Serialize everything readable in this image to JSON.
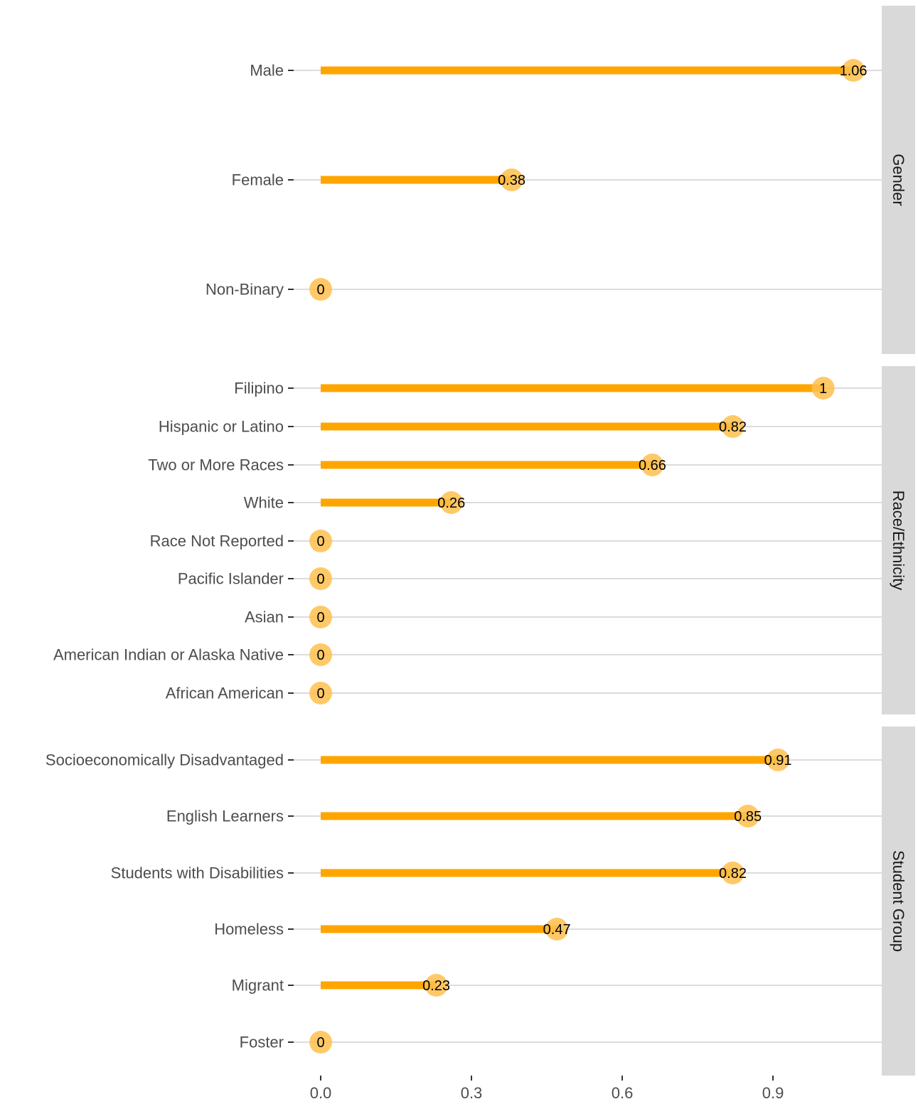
{
  "chart_data": {
    "type": "lollipop",
    "orientation": "horizontal",
    "xlim": [
      0,
      1.1
    ],
    "x_ticks": [
      {
        "value": 0.0,
        "label": "0.0"
      },
      {
        "value": 0.3,
        "label": "0.3"
      },
      {
        "value": 0.6,
        "label": "0.6"
      },
      {
        "value": 0.9,
        "label": "0.9"
      }
    ],
    "title": "",
    "xlabel": "",
    "ylabel": "",
    "grid": true,
    "colors": {
      "stem": "#ffa500",
      "point": "#ffc04d",
      "strip_bg": "#d9d9d9",
      "grid": "#dcdcdc"
    },
    "panels": [
      {
        "name": "Gender",
        "items": [
          {
            "label": "Male",
            "value": 1.06,
            "value_label": "1.06"
          },
          {
            "label": "Female",
            "value": 0.38,
            "value_label": "0.38"
          },
          {
            "label": "Non-Binary",
            "value": 0,
            "value_label": "0"
          }
        ]
      },
      {
        "name": "Race/Ethnicity",
        "items": [
          {
            "label": "Filipino",
            "value": 1,
            "value_label": "1"
          },
          {
            "label": "Hispanic or Latino",
            "value": 0.82,
            "value_label": "0.82"
          },
          {
            "label": "Two or More Races",
            "value": 0.66,
            "value_label": "0.66"
          },
          {
            "label": "White",
            "value": 0.26,
            "value_label": "0.26"
          },
          {
            "label": "Race Not Reported",
            "value": 0,
            "value_label": "0"
          },
          {
            "label": "Pacific Islander",
            "value": 0,
            "value_label": "0"
          },
          {
            "label": "Asian",
            "value": 0,
            "value_label": "0"
          },
          {
            "label": "American Indian or Alaska Native",
            "value": 0,
            "value_label": "0"
          },
          {
            "label": "African American",
            "value": 0,
            "value_label": "0"
          }
        ]
      },
      {
        "name": "Student Group",
        "items": [
          {
            "label": "Socioeconomically Disadvantaged",
            "value": 0.91,
            "value_label": "0.91"
          },
          {
            "label": "English Learners",
            "value": 0.85,
            "value_label": "0.85"
          },
          {
            "label": "Students with Disabilities",
            "value": 0.82,
            "value_label": "0.82"
          },
          {
            "label": "Homeless",
            "value": 0.47,
            "value_label": "0.47"
          },
          {
            "label": "Migrant",
            "value": 0.23,
            "value_label": "0.23"
          },
          {
            "label": "Foster",
            "value": 0,
            "value_label": "0"
          }
        ]
      }
    ]
  }
}
